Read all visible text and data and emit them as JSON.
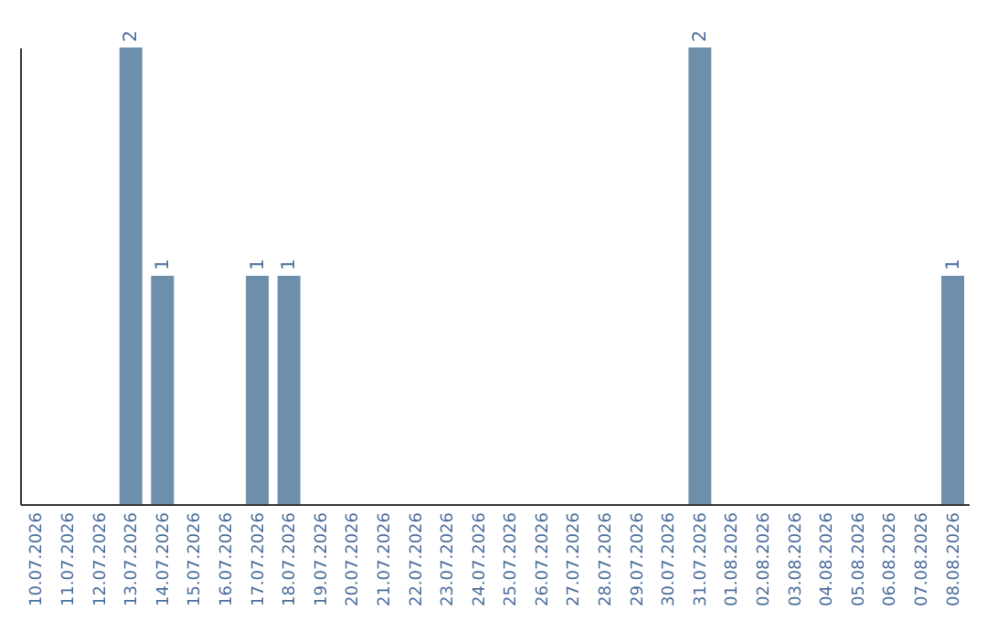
{
  "chart_data": {
    "type": "bar",
    "categories": [
      "10.07.2026",
      "11.07.2026",
      "12.07.2026",
      "13.07.2026",
      "14.07.2026",
      "15.07.2026",
      "16.07.2026",
      "17.07.2026",
      "18.07.2026",
      "19.07.2026",
      "20.07.2026",
      "21.07.2026",
      "22.07.2026",
      "23.07.2026",
      "24.07.2026",
      "25.07.2026",
      "26.07.2026",
      "27.07.2026",
      "28.07.2026",
      "29.07.2026",
      "30.07.2026",
      "31.07.2026",
      "01.08.2026",
      "02.08.2026",
      "03.08.2026",
      "04.08.2026",
      "05.08.2026",
      "06.08.2026",
      "07.08.2026",
      "08.08.2026"
    ],
    "values": [
      0,
      0,
      0,
      2,
      1,
      0,
      0,
      1,
      1,
      0,
      0,
      0,
      0,
      0,
      0,
      0,
      0,
      0,
      0,
      0,
      0,
      2,
      0,
      0,
      0,
      0,
      0,
      0,
      0,
      1
    ],
    "value_labels": [
      null,
      null,
      null,
      "2",
      "1",
      null,
      null,
      "1",
      "1",
      null,
      null,
      null,
      null,
      null,
      null,
      null,
      null,
      null,
      null,
      null,
      null,
      "2",
      null,
      null,
      null,
      null,
      null,
      null,
      null,
      "1"
    ],
    "color": "#6d8fab",
    "tick_labels": "x",
    "grid": false
  }
}
